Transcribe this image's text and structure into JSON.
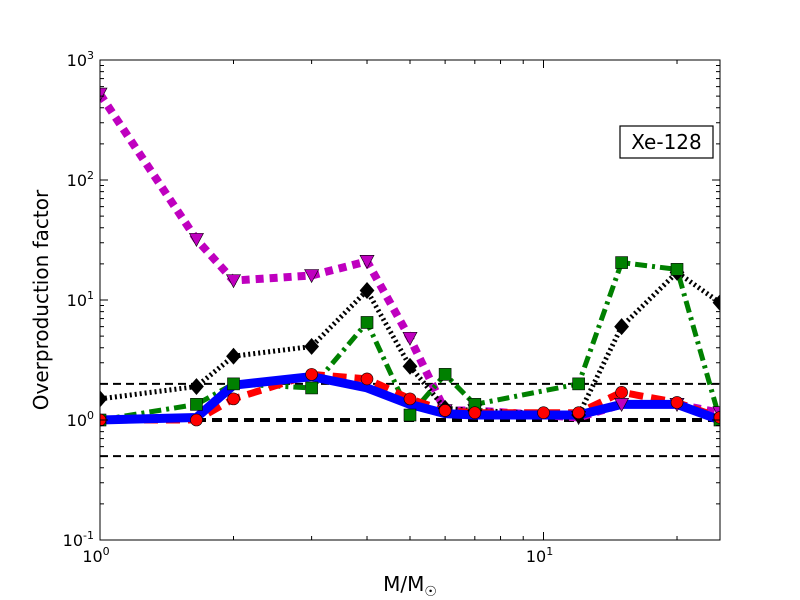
{
  "chart_data": {
    "type": "line",
    "title": "",
    "xlabel": "M/M",
    "xlabel_subscript": "☉",
    "ylabel": "Overproduction factor",
    "xscale": "log",
    "yscale": "log",
    "xlim": [
      1,
      25
    ],
    "ylim": [
      0.1,
      1000
    ],
    "grid": false,
    "legend": "none",
    "annotation": "Xe-128",
    "x_ticks": [
      {
        "value": 1,
        "base": "10",
        "exp": "0"
      },
      {
        "value": 10,
        "base": "10",
        "exp": "1"
      }
    ],
    "y_ticks": [
      {
        "value": 0.1,
        "base": "10",
        "exp": "-1"
      },
      {
        "value": 1,
        "base": "10",
        "exp": "0"
      },
      {
        "value": 10,
        "base": "10",
        "exp": "1"
      },
      {
        "value": 100,
        "base": "10",
        "exp": "2"
      },
      {
        "value": 1000,
        "base": "10",
        "exp": "3"
      }
    ],
    "reference_lines": [
      {
        "y": 2.0,
        "style": "thin-dashed",
        "color": "#000000"
      },
      {
        "y": 1.0,
        "style": "thick-dashed",
        "color": "#000000"
      },
      {
        "y": 0.5,
        "style": "thin-dashed",
        "color": "#000000"
      }
    ],
    "series": [
      {
        "color": "#0000ff",
        "line": "solid",
        "marker": "none",
        "x": [
          1,
          1.65,
          2,
          3,
          4,
          5,
          6,
          7,
          10,
          12,
          15,
          20,
          25
        ],
        "y": [
          1.0,
          1.05,
          1.95,
          2.3,
          1.85,
          1.35,
          1.13,
          1.1,
          1.1,
          1.1,
          1.35,
          1.35,
          1.0
        ]
      },
      {
        "color": "#ff0000",
        "line": "dashed",
        "marker": "circle",
        "x": [
          1,
          1.65,
          2,
          3,
          4,
          5,
          6,
          7,
          10,
          12,
          15,
          20,
          25
        ],
        "y": [
          1.0,
          1.0,
          1.5,
          2.4,
          2.2,
          1.5,
          1.2,
          1.15,
          1.15,
          1.15,
          1.7,
          1.4,
          1.05
        ]
      },
      {
        "color": "#008000",
        "line": "dashdot",
        "marker": "square",
        "x": [
          1,
          1.65,
          2,
          3,
          4,
          5,
          6,
          7,
          12,
          15,
          20,
          25
        ],
        "y": [
          1.0,
          1.35,
          2.0,
          1.85,
          6.5,
          1.1,
          2.4,
          1.35,
          2.0,
          20.5,
          18.0,
          1.0
        ]
      },
      {
        "color": "#000000",
        "line": "dotted",
        "marker": "diamond",
        "x": [
          1,
          1.65,
          2,
          3,
          4,
          5,
          6,
          7,
          12,
          15,
          20,
          25
        ],
        "y": [
          1.5,
          1.9,
          3.4,
          4.1,
          12.0,
          2.8,
          1.25,
          1.2,
          1.1,
          6.0,
          17.0,
          9.5
        ]
      },
      {
        "color": "#bf00bf",
        "line": "dotted-thick",
        "marker": "triangle-down",
        "x": [
          1,
          1.65,
          2,
          3,
          4,
          5,
          6,
          7,
          12,
          15,
          20,
          25
        ],
        "y": [
          520,
          32,
          14.5,
          16.0,
          21.0,
          4.8,
          1.2,
          1.2,
          1.05,
          1.35,
          1.35,
          1.15
        ]
      }
    ]
  }
}
